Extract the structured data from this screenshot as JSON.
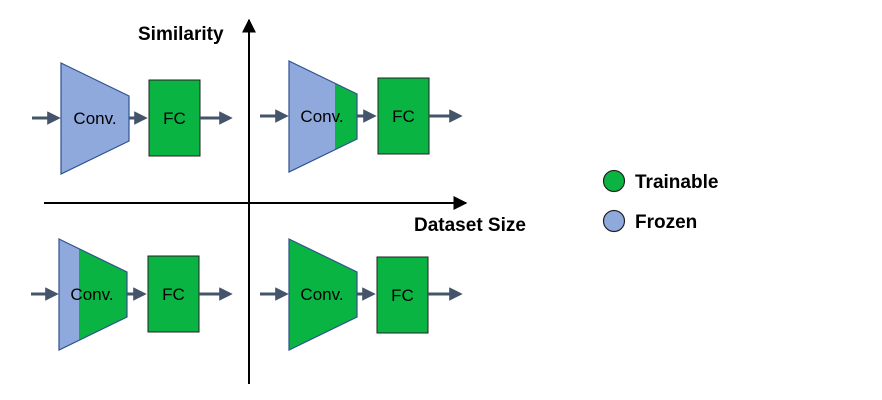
{
  "axes": {
    "y_label": "Similarity",
    "x_label": "Dataset Size"
  },
  "legend": {
    "items": [
      {
        "label": "Trainable",
        "color": "#0ab443"
      },
      {
        "label": "Frozen",
        "color": "#8fa9dc"
      }
    ]
  },
  "colors": {
    "trainable": "#0ab443",
    "frozen": "#8fa9dc",
    "arrow": "#44546a",
    "border": "#2f528f"
  },
  "quadrants": [
    {
      "id": "top-left",
      "conv_label": "Conv.",
      "fc_label": "FC",
      "trainable_fraction": 0.0
    },
    {
      "id": "top-right",
      "conv_label": "Conv.",
      "fc_label": "FC",
      "trainable_fraction": 0.3
    },
    {
      "id": "bottom-left",
      "conv_label": "Conv.",
      "fc_label": "FC",
      "trainable_fraction": 0.7
    },
    {
      "id": "bottom-right",
      "conv_label": "Conv.",
      "fc_label": "FC",
      "trainable_fraction": 1.0
    }
  ]
}
